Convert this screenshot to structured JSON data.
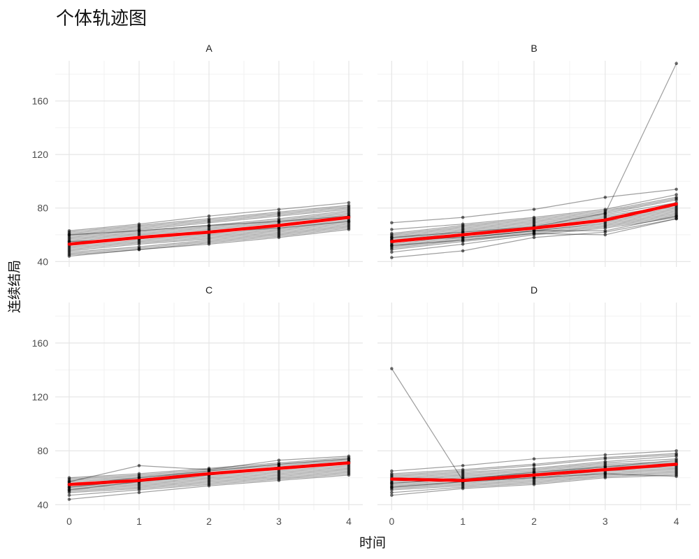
{
  "title": "个体轨迹图",
  "chart_data": {
    "type": "line",
    "title": "个体轨迹图",
    "xlabel": "时间",
    "ylabel": "连续结局",
    "x_ticks": [
      0,
      1,
      2,
      3,
      4
    ],
    "y_ticks": [
      40,
      80,
      120,
      160
    ],
    "xlim": [
      -0.2,
      4.2
    ],
    "ylim": [
      36,
      190
    ],
    "grid": true,
    "legend": "none",
    "colors": {
      "individual": "#000000",
      "mean": "#ff0000",
      "grid_major": "#e6e6e6",
      "grid_minor": "#f2f2f2"
    },
    "panels": [
      {
        "label": "A",
        "mean": [
          53,
          58,
          62,
          67,
          73
        ],
        "individuals": [
          [
            44,
            49,
            53,
            58,
            64
          ],
          [
            45,
            49,
            54,
            59,
            65
          ],
          [
            47,
            51,
            56,
            61,
            67
          ],
          [
            48,
            53,
            57,
            62,
            68
          ],
          [
            49,
            54,
            58,
            63,
            69
          ],
          [
            50,
            55,
            59,
            64,
            70
          ],
          [
            51,
            56,
            60,
            65,
            71
          ],
          [
            52,
            57,
            61,
            66,
            72
          ],
          [
            53,
            58,
            62,
            67,
            73
          ],
          [
            54,
            59,
            63,
            68,
            74
          ],
          [
            55,
            60,
            64,
            69,
            75
          ],
          [
            56,
            61,
            65,
            70,
            76
          ],
          [
            57,
            62,
            66,
            71,
            77
          ],
          [
            58,
            63,
            67,
            72,
            78
          ],
          [
            59,
            64,
            69,
            74,
            79
          ],
          [
            60,
            65,
            70,
            75,
            80
          ],
          [
            61,
            66,
            71,
            76,
            81
          ],
          [
            62,
            67,
            72,
            77,
            82
          ],
          [
            63,
            68,
            74,
            79,
            84
          ],
          [
            46,
            50,
            55,
            60,
            66
          ],
          [
            55,
            57,
            62,
            65,
            70
          ],
          [
            60,
            63,
            67,
            70,
            74
          ]
        ]
      },
      {
        "label": "B",
        "mean": [
          55,
          60,
          65,
          71,
          83
        ],
        "individuals": [
          [
            43,
            48,
            58,
            62,
            72
          ],
          [
            47,
            53,
            60,
            65,
            73
          ],
          [
            49,
            55,
            61,
            66,
            74
          ],
          [
            50,
            56,
            62,
            67,
            75
          ],
          [
            51,
            57,
            63,
            68,
            76
          ],
          [
            52,
            58,
            63,
            69,
            77
          ],
          [
            53,
            59,
            64,
            70,
            78
          ],
          [
            54,
            60,
            65,
            71,
            79
          ],
          [
            55,
            61,
            66,
            72,
            80
          ],
          [
            56,
            62,
            67,
            73,
            81
          ],
          [
            57,
            63,
            68,
            74,
            82
          ],
          [
            58,
            64,
            69,
            75,
            84
          ],
          [
            59,
            65,
            70,
            76,
            86
          ],
          [
            60,
            66,
            71,
            77,
            87
          ],
          [
            61,
            67,
            72,
            78,
            88
          ],
          [
            64,
            68,
            73,
            79,
            90
          ],
          [
            69,
            73,
            79,
            88,
            94
          ],
          [
            52,
            56,
            61,
            60,
            72
          ],
          [
            56,
            58,
            63,
            63,
            74
          ],
          [
            58,
            62,
            66,
            76,
            188
          ]
        ]
      },
      {
        "label": "C",
        "mean": [
          55,
          58,
          63,
          67,
          71
        ],
        "individuals": [
          [
            44,
            49,
            54,
            58,
            62
          ],
          [
            47,
            51,
            55,
            59,
            63
          ],
          [
            49,
            52,
            56,
            60,
            64
          ],
          [
            50,
            53,
            57,
            61,
            65
          ],
          [
            51,
            54,
            58,
            62,
            66
          ],
          [
            52,
            55,
            59,
            63,
            67
          ],
          [
            53,
            56,
            60,
            64,
            68
          ],
          [
            54,
            57,
            61,
            65,
            69
          ],
          [
            55,
            58,
            62,
            66,
            70
          ],
          [
            56,
            59,
            63,
            67,
            71
          ],
          [
            57,
            60,
            64,
            68,
            72
          ],
          [
            58,
            61,
            65,
            69,
            73
          ],
          [
            59,
            62,
            66,
            70,
            74
          ],
          [
            60,
            63,
            67,
            71,
            75
          ],
          [
            57,
            69,
            66,
            73,
            76
          ],
          [
            55,
            60,
            65,
            70,
            74
          ],
          [
            53,
            58,
            63,
            68,
            72
          ],
          [
            51,
            57,
            62,
            67,
            71
          ]
        ]
      },
      {
        "label": "D",
        "mean": [
          59,
          58,
          62,
          66,
          70
        ],
        "individuals": [
          [
            47,
            52,
            55,
            60,
            62
          ],
          [
            49,
            53,
            56,
            61,
            63
          ],
          [
            51,
            54,
            57,
            62,
            64
          ],
          [
            52,
            55,
            58,
            63,
            65
          ],
          [
            53,
            56,
            59,
            64,
            66
          ],
          [
            54,
            57,
            60,
            65,
            67
          ],
          [
            55,
            58,
            61,
            66,
            68
          ],
          [
            56,
            59,
            62,
            67,
            69
          ],
          [
            57,
            60,
            63,
            68,
            70
          ],
          [
            58,
            61,
            64,
            69,
            71
          ],
          [
            59,
            62,
            65,
            70,
            72
          ],
          [
            60,
            63,
            66,
            71,
            74
          ],
          [
            61,
            64,
            67,
            72,
            76
          ],
          [
            62,
            65,
            69,
            74,
            77
          ],
          [
            63,
            66,
            70,
            75,
            78
          ],
          [
            65,
            69,
            74,
            77,
            80
          ],
          [
            141,
            58,
            62,
            66,
            70
          ],
          [
            53,
            57,
            60,
            63,
            61
          ],
          [
            56,
            59,
            64,
            68,
            73
          ]
        ]
      }
    ]
  }
}
